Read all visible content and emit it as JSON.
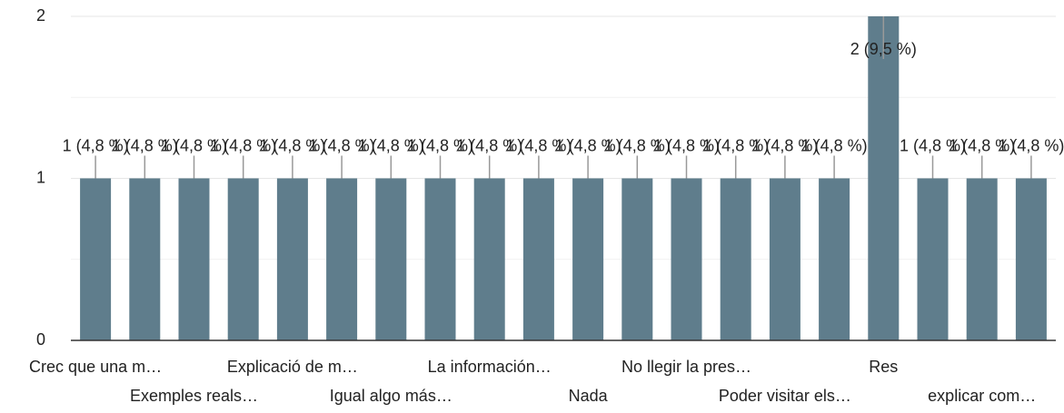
{
  "chart_data": {
    "type": "bar",
    "categories": [
      "Crec que una m…",
      null,
      "Exemples reals…",
      null,
      "Explicació de m…",
      null,
      "Igual algo más…",
      null,
      "La información…",
      null,
      "Nada",
      null,
      "No llegir la pres…",
      null,
      "Poder visitar els…",
      null,
      "Res",
      null,
      "explicar com…",
      null
    ],
    "values": [
      1,
      1,
      1,
      1,
      1,
      1,
      1,
      1,
      1,
      1,
      1,
      1,
      1,
      1,
      1,
      1,
      2,
      1,
      1,
      1
    ],
    "value_labels": [
      "1 (4,8 %)",
      "1 (4,8 %)",
      "1 (4,8 %)",
      "1 (4,8 %)",
      "1 (4,8 %)",
      "1 (4,8 %)",
      "1 (4,8 %)",
      "1 (4,8 %)",
      "1 (4,8 %)",
      "1 (4,8 %)",
      "1 (4,8 %)",
      "1 (4,8 %)",
      "1 (4,8 %)",
      "1 (4,8 %)",
      "1 (4,8 %)",
      "1 (4,8 %)",
      "2 (9,5 %)",
      "1 (4,8 %)",
      "1 (4,8 %)",
      "1 (4,8 %)"
    ],
    "color": "#5f7d8c",
    "ylim": [
      0,
      2
    ],
    "yticks": [
      0,
      1,
      2
    ],
    "minor_yticks": [
      0.5,
      1.5
    ],
    "grid": true
  }
}
